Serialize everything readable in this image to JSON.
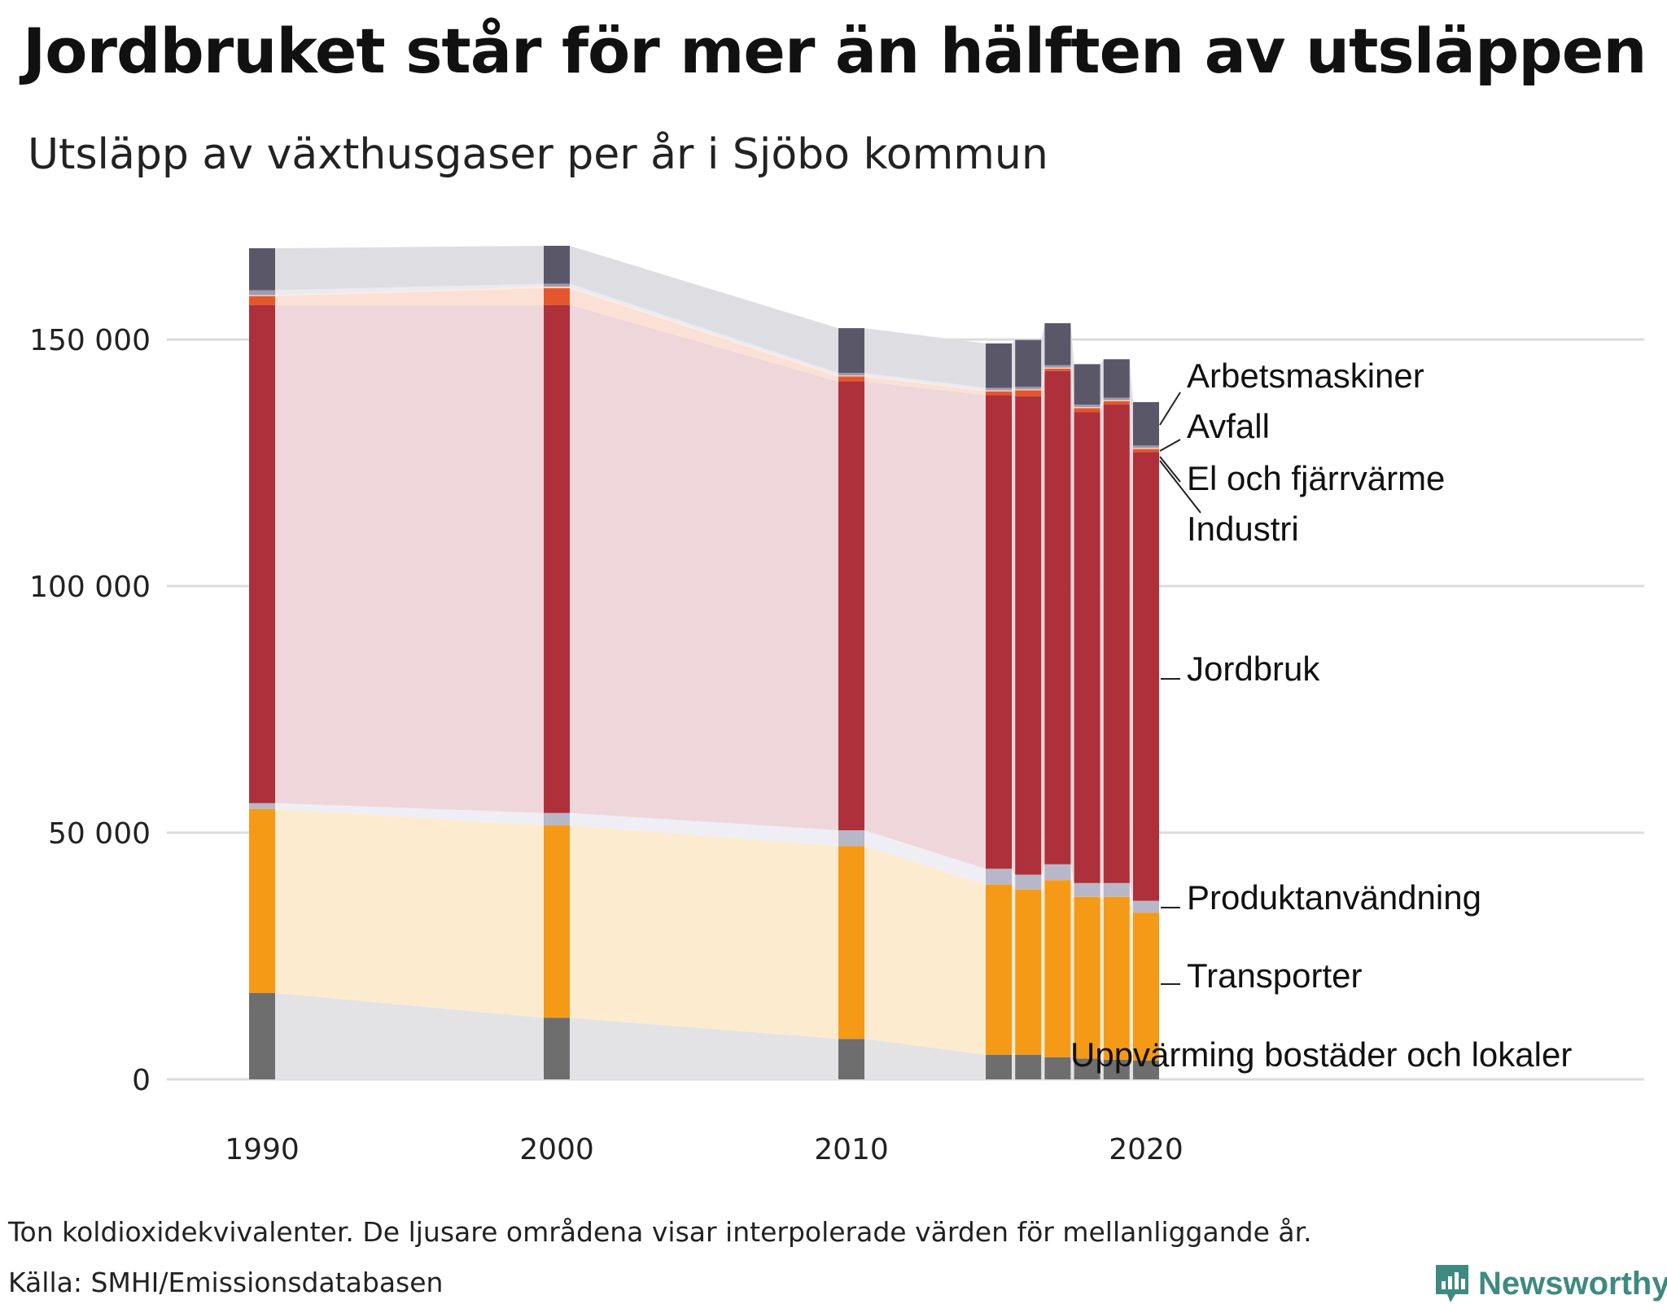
{
  "title": "Jordbruket står för mer än hälften av utsläppen",
  "subtitle": "Utsläpp av växthusgaser per år i Sjöbo kommun",
  "note": "Ton koldioxidekvivalenter. De ljusare områdena visar interpolerade värden för mellanliggande år.",
  "source": "Källa: SMHI/Emissionsdatabasen",
  "brand": {
    "name": "Newsworthy"
  },
  "chart_data": {
    "type": "bar",
    "stacked": true,
    "years": [
      1990,
      2000,
      2010,
      2015,
      2016,
      2017,
      2018,
      2019,
      2020
    ],
    "x_ticks": [
      1990,
      2000,
      2010,
      2020
    ],
    "x_tick_labels": [
      "1990",
      "2000",
      "2010",
      "2020"
    ],
    "y_ticks": [
      0,
      50000,
      100000,
      150000
    ],
    "y_tick_labels": [
      "0",
      "50 000",
      "100 000",
      "150 000"
    ],
    "ylim": [
      0,
      168000
    ],
    "grid": true,
    "series": [
      {
        "name": "Uppvärming bostäder och lokaler",
        "color": "#6e6e6e",
        "light": "#e3e3e5",
        "values": [
          17500,
          12500,
          8200,
          5000,
          5000,
          4500,
          4200,
          4000,
          3800
        ]
      },
      {
        "name": "Transporter",
        "color": "#f59a17",
        "light": "#fdebd0",
        "values": [
          37300,
          39000,
          39100,
          34500,
          33500,
          35900,
          32800,
          33000,
          30000
        ]
      },
      {
        "name": "Produktanvändning",
        "color": "#b8b7c7",
        "light": "#efeef4",
        "values": [
          1200,
          2500,
          3200,
          3200,
          3000,
          3200,
          2800,
          2800,
          2400
        ]
      },
      {
        "name": "Jordbruk",
        "color": "#ae303a",
        "light": "#efd6da",
        "values": [
          101000,
          103000,
          91000,
          96000,
          97000,
          100000,
          95500,
          97000,
          91000
        ]
      },
      {
        "name": "Industri",
        "color": "#e5562d",
        "light": "#fbe0d6",
        "values": [
          1800,
          3400,
          1000,
          800,
          1200,
          500,
          800,
          700,
          600
        ]
      },
      {
        "name": "El och fjärrvärme",
        "color": "#fbd9c1",
        "light": "#fdebe0",
        "values": [
          200,
          300,
          200,
          200,
          200,
          200,
          200,
          200,
          200
        ]
      },
      {
        "name": "Avfall",
        "color": "#9d9bb1",
        "light": "#ebeaf1",
        "values": [
          1000,
          600,
          500,
          500,
          500,
          500,
          500,
          500,
          500
        ]
      },
      {
        "name": "Arbetsmaskiner",
        "color": "#5a5768",
        "light": "#dedee2",
        "values": [
          8500,
          7700,
          9100,
          9000,
          9500,
          8500,
          8200,
          7800,
          8800
        ]
      }
    ]
  }
}
